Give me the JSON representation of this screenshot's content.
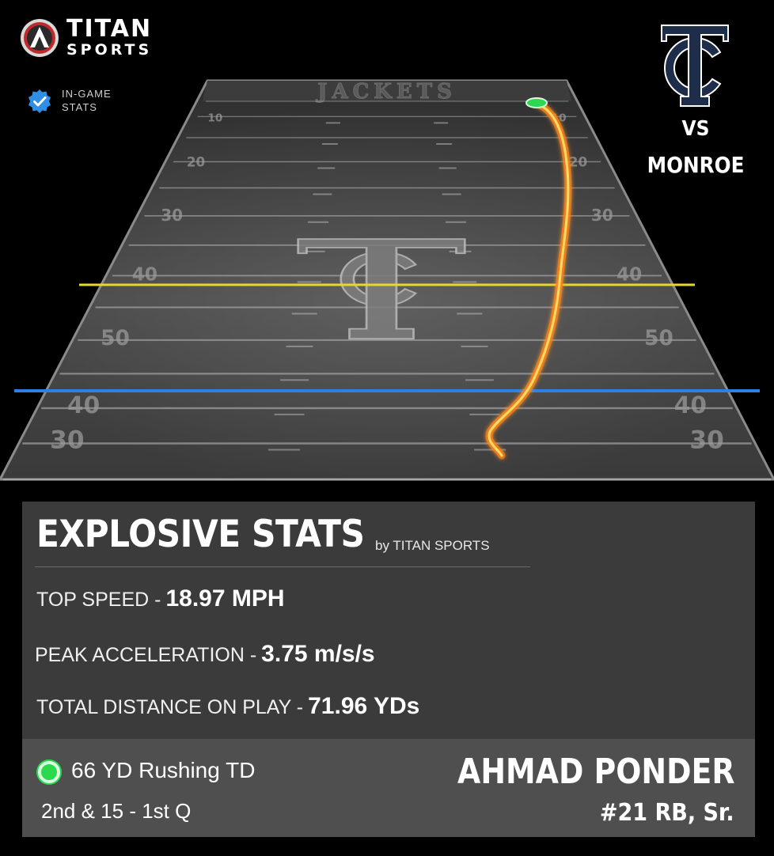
{
  "brand": {
    "title": "TITAN",
    "subtitle": "SPORTS",
    "logo_icon": "titan-a-logo-icon",
    "accent": "#c0292b"
  },
  "badge": {
    "icon": "verified-check-icon",
    "text": "IN-GAME\nSTATS",
    "color": "#2f8fe6"
  },
  "team": {
    "logo_icon": "tc-monogram-logo",
    "vs": "VS",
    "opponent": "MONROE",
    "logo_color": "#1d2d4a"
  },
  "field": {
    "endzone_text": "JACKETS",
    "yard_numbers": [
      "10",
      "20",
      "30",
      "40",
      "50",
      "40",
      "30"
    ],
    "line_of_scrimmage_color": "#e6d72a",
    "first_down_line_color": "#2f7fe6",
    "trail_color": "#ffb020",
    "end_marker_color": "#2bd84e"
  },
  "stats_panel": {
    "title": "EXPLOSIVE STATS",
    "by_line": "by TITAN SPORTS",
    "stats": [
      {
        "label": "TOP SPEED -",
        "value": "18.97 MPH"
      },
      {
        "label": "PEAK ACCELERATION -",
        "value": "3.75 m/s/s"
      },
      {
        "label": "TOTAL DISTANCE ON PLAY -",
        "value": "71.96 YDs"
      }
    ]
  },
  "play": {
    "description": "66 YD Rushing TD",
    "situation": "2nd & 15 - 1st Q",
    "status_color": "#2bd84e"
  },
  "player": {
    "name": "AHMAD PONDER",
    "detail": "#21 RB, Sr."
  }
}
